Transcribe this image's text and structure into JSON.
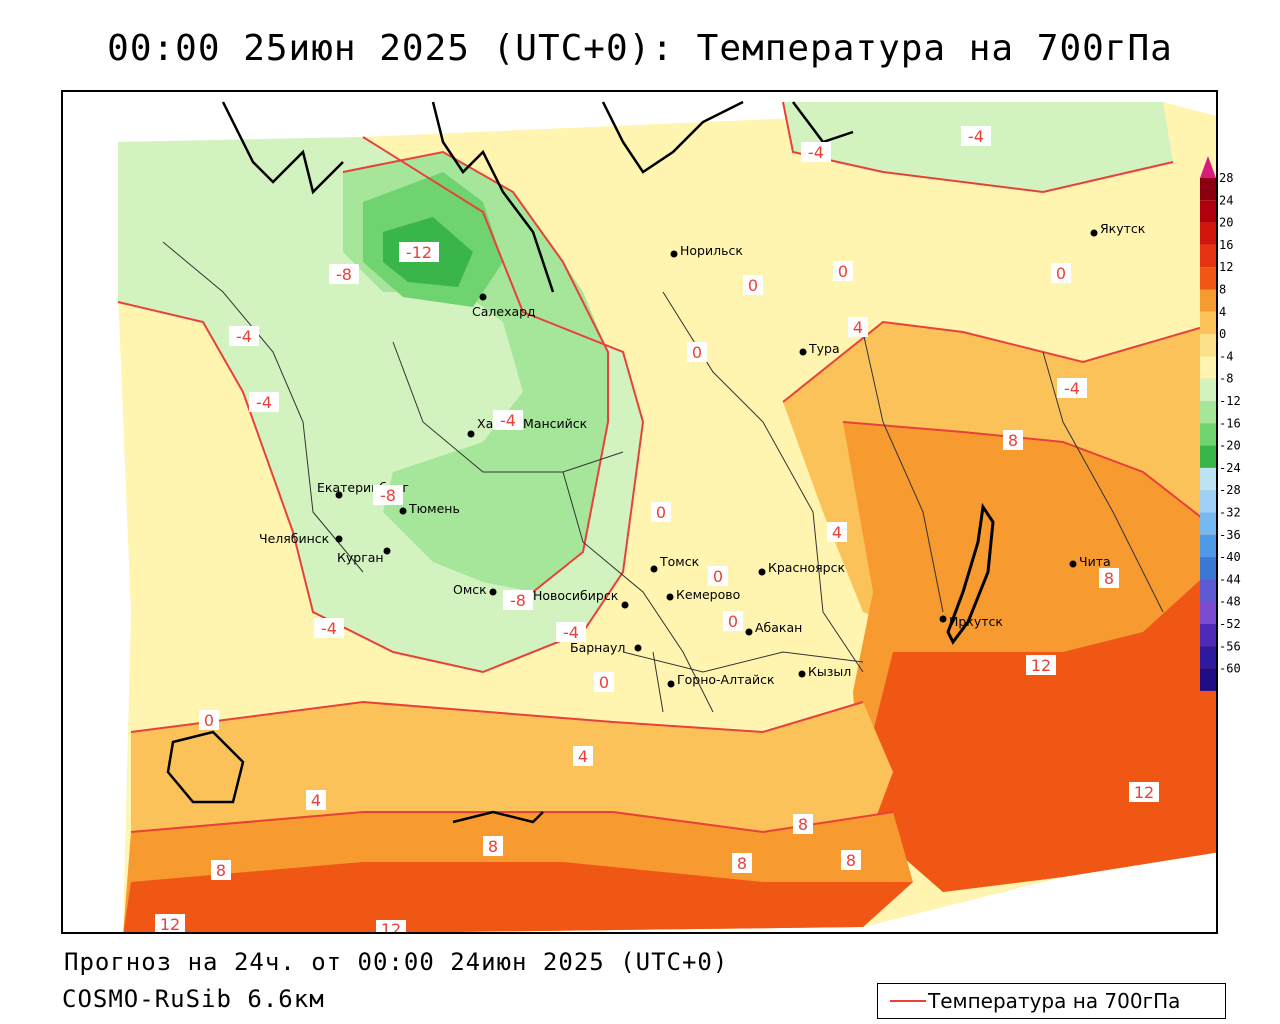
{
  "title": "00:00 25июн 2025 (UTC+0): Температура на 700гПа",
  "forecast_line": "Прогноз на 24ч. от 00:00 24июн 2025 (UTC+0)",
  "model_line": "COSMO-RuSib 6.6км",
  "legend_label": "Температура на 700гПа",
  "colorbar": {
    "ticks": [
      "28",
      "24",
      "20",
      "16",
      "12",
      "8",
      "4",
      "0",
      "-4",
      "-8",
      "-12",
      "-16",
      "-20",
      "-24",
      "-28",
      "-32",
      "-36",
      "-40",
      "-44",
      "-48",
      "-52",
      "-56",
      "-60"
    ],
    "colors": [
      "#8b0010",
      "#b0000e",
      "#d2150d",
      "#e63412",
      "#f05614",
      "#f79a30",
      "#fcc25a",
      "#fde08c",
      "#fff4b0",
      "#d2f2c0",
      "#a5e69a",
      "#6fd370",
      "#3ab54a",
      "#bde3f5",
      "#9ed1f5",
      "#76b9f1",
      "#4f9ae6",
      "#3b78d6",
      "#5c59d2",
      "#7a4bd0",
      "#4e2ab8",
      "#2e1a9e",
      "#1e0b86"
    ],
    "top_arrow_color": "#d81b7c",
    "bottom_arrow_color": "#7b2bbd"
  },
  "cities": [
    {
      "name": "Якутск"
    },
    {
      "name": "Норильск"
    },
    {
      "name": "Салехард"
    },
    {
      "name": "Тура"
    },
    {
      "name": "Ханты-Мансийск"
    },
    {
      "name": "Екатеринбург"
    },
    {
      "name": "Тюмень"
    },
    {
      "name": "Челябинск"
    },
    {
      "name": "Курган"
    },
    {
      "name": "Томск"
    },
    {
      "name": "Красноярск"
    },
    {
      "name": "Омск"
    },
    {
      "name": "Новосибирск"
    },
    {
      "name": "Кемерово"
    },
    {
      "name": "Абакан"
    },
    {
      "name": "Барнаул"
    },
    {
      "name": "Иркутск"
    },
    {
      "name": "Чита"
    },
    {
      "name": "Кызыл"
    },
    {
      "name": "Горно-Алтайск"
    }
  ],
  "isotherm_labels": [
    "-4",
    "-4",
    "-12",
    "-8",
    "-4",
    "-4",
    "0",
    "0",
    "0",
    "0",
    "-4",
    "-8",
    "-8",
    "-4",
    "-4",
    "4",
    "8",
    "0",
    "4",
    "0",
    "0",
    "0",
    "0",
    "-4",
    "8",
    "12",
    "12",
    "4",
    "4",
    "8",
    "8",
    "8",
    "8",
    "8",
    "12",
    "12"
  ]
}
